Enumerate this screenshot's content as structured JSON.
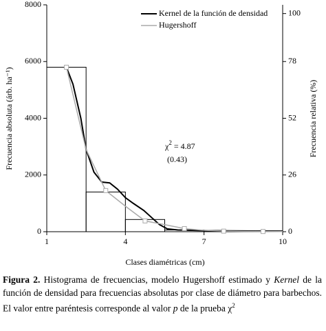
{
  "chart_data": {
    "type": "histogram",
    "bins": [
      1,
      2.5,
      4,
      5.5,
      7,
      8.5,
      10
    ],
    "counts": [
      5800,
      1400,
      430,
      60,
      30,
      20
    ],
    "bar_color": "#000000",
    "series": [
      {
        "name": "Kernel de la función de densidad",
        "color": "#000000",
        "x": [
          1.75,
          2,
          2.3,
          2.5,
          2.8,
          3.1,
          3.4,
          3.7,
          4,
          4.3,
          4.7,
          5,
          5.3,
          5.6,
          6,
          7,
          8,
          9,
          10
        ],
        "values": [
          5800,
          5200,
          4000,
          2900,
          2100,
          1750,
          1720,
          1500,
          1200,
          1000,
          750,
          500,
          250,
          100,
          60,
          40,
          30,
          25,
          20
        ]
      },
      {
        "name": "Hugershoff",
        "color": "#aaaaaa",
        "marker": "square",
        "x": [
          1.75,
          2.5,
          3.25,
          4,
          4.75,
          5.5,
          6.25,
          7,
          7.75,
          8.5,
          9.25,
          10
        ],
        "values": [
          5800,
          2900,
          1450,
          900,
          380,
          250,
          110,
          50,
          20,
          12,
          8,
          5
        ]
      }
    ],
    "xlabel": "Clases diamétricas (cm)",
    "ylabel": "Frecuencia absoluta (árb. ha⁻¹)",
    "y2label": "Frecuencia relativa (%)",
    "xlim": [
      1,
      10
    ],
    "xticks": [
      1,
      4,
      7,
      10
    ],
    "ylim": [
      0,
      8000
    ],
    "yticks": [
      0,
      2000,
      4000,
      6000,
      8000
    ],
    "y2lim": [
      0,
      104
    ],
    "y2ticks": [
      0,
      26,
      52,
      78,
      100
    ],
    "legend": "upper right",
    "annotation": {
      "symbol": "χ",
      "power": "2",
      "text": " = 4.87",
      "note": "(0.43)"
    }
  },
  "caption": {
    "label": "Figura 2.",
    "parts": [
      " Histograma de frecuencias, modelo Hugershoff estimado y ",
      "Kernel",
      " de la función de densidad para frecuencias absolutas por clase de diámetro para barbechos. El valor entre paréntesis corresponde al valor ",
      "p",
      " de la prueba χ",
      "2"
    ]
  }
}
